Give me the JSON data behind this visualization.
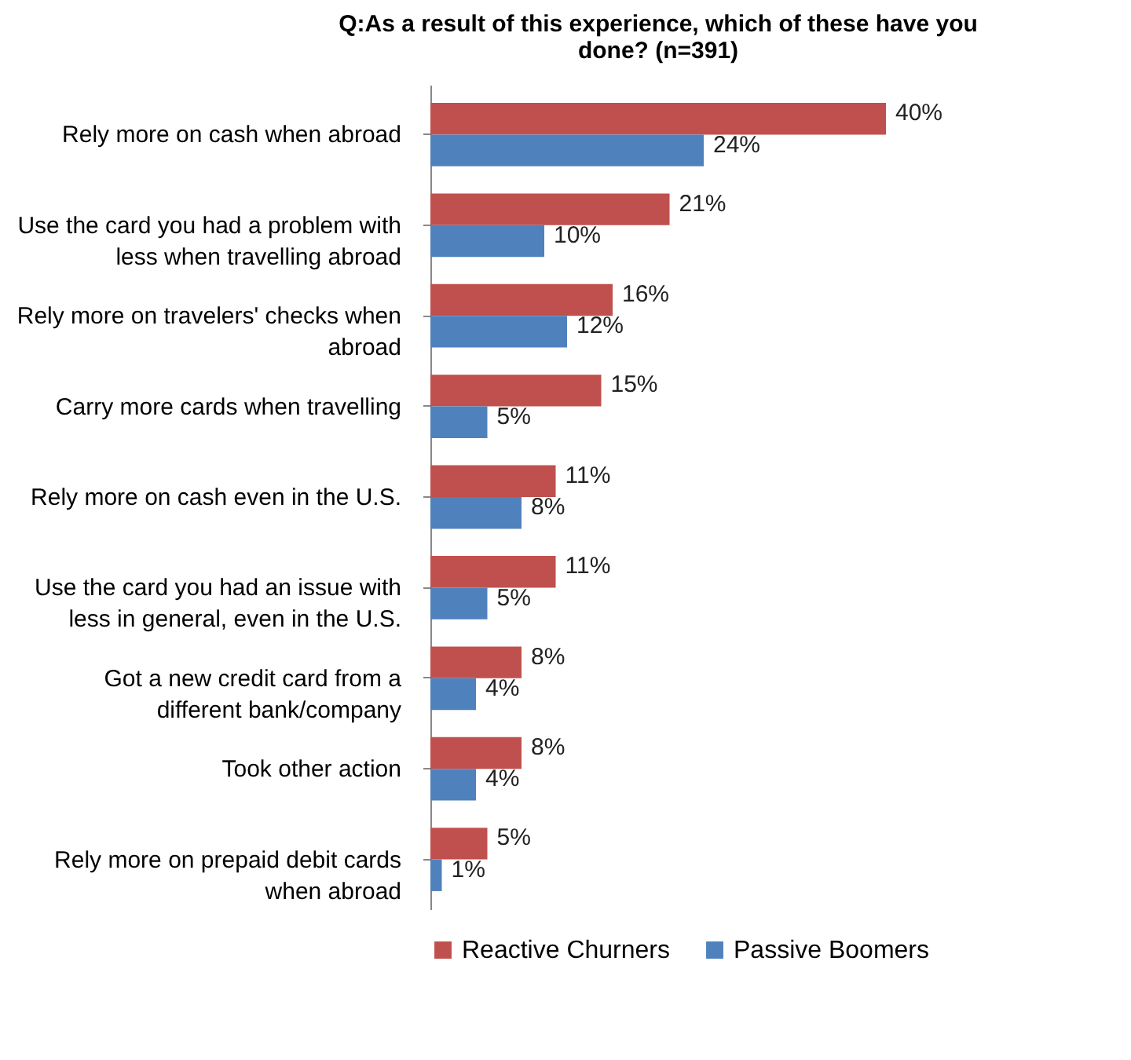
{
  "chart_data": {
    "type": "bar",
    "orientation": "horizontal",
    "title": "Q:As a result of this experience, which of these have you done? (n=391)",
    "categories": [
      "Rely more on cash when abroad",
      "Use the card you had a problem with less when travelling abroad",
      "Rely more on travelers' checks when abroad",
      "Carry more cards when travelling",
      "Rely more on cash even in the U.S.",
      "Use the card you had an issue with less in general, even in the U.S.",
      "Got a new credit card from a different bank/company",
      "Took other action",
      "Rely more on prepaid debit cards when abroad"
    ],
    "series": [
      {
        "name": "Reactive Churners",
        "color": "#c0504d",
        "values": [
          40,
          21,
          16,
          15,
          11,
          11,
          8,
          8,
          5
        ],
        "value_labels": [
          "40%",
          "21%",
          "16%",
          "15%",
          "11%",
          "11%",
          "8%",
          "8%",
          "5%"
        ]
      },
      {
        "name": "Passive Boomers",
        "color": "#4f81bd",
        "values": [
          24,
          10,
          12,
          5,
          8,
          5,
          4,
          4,
          1
        ],
        "value_labels": [
          "24%",
          "10%",
          "12%",
          "5%",
          "8%",
          "5%",
          "4%",
          "4%",
          "1%"
        ]
      }
    ],
    "legend": "bottom"
  }
}
